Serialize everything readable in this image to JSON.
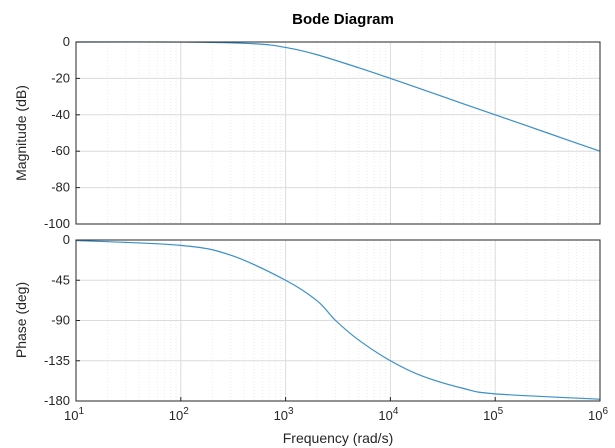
{
  "chart_data": {
    "type": "line",
    "title": "Bode Diagram",
    "xlabel": "Frequency  (rad/s)",
    "x_scale": "log",
    "xlim": [
      10,
      1000000
    ],
    "x_ticks": [
      {
        "value": 10,
        "base": "10",
        "exp": "1"
      },
      {
        "value": 100,
        "base": "10",
        "exp": "2"
      },
      {
        "value": 1000,
        "base": "10",
        "exp": "3"
      },
      {
        "value": 10000,
        "base": "10",
        "exp": "4"
      },
      {
        "value": 100000,
        "base": "10",
        "exp": "5"
      },
      {
        "value": 1000000,
        "base": "10",
        "exp": "6"
      }
    ],
    "grid": true,
    "line_color": "#3a8fc7",
    "panels": [
      {
        "id": "magnitude",
        "ylabel": "Magnitude (dB)",
        "ylim": [
          -100,
          0
        ],
        "y_ticks": [
          "0",
          "-20",
          "-40",
          "-60",
          "-80",
          "-100"
        ],
        "series": [
          {
            "x": [
              10,
              100,
              500,
              1000,
              2000,
              5000,
              10000,
              20000,
              50000,
              100000,
              200000,
              500000,
              1000000
            ],
            "y": [
              0,
              -0.04,
              -0.97,
              -3.0,
              -7.0,
              -14.2,
              -20.0,
              -26.0,
              -34.0,
              -40.0,
              -46.0,
              -54.0,
              -60.0
            ]
          }
        ]
      },
      {
        "id": "phase",
        "ylabel": "Phase (deg)",
        "ylim": [
          -180,
          0
        ],
        "y_ticks": [
          "0",
          "-45",
          "-90",
          "-135",
          "-180"
        ],
        "series": [
          {
            "x": [
              10,
              100,
              300,
              1000,
              2000,
              3000,
              5000,
              10000,
              20000,
              50000,
              100000,
              1000000
            ],
            "y": [
              -0.6,
              -6,
              -17,
              -45,
              -68,
              -90,
              -112,
              -135,
              -152,
              -166,
              -172,
              -178
            ]
          }
        ]
      }
    ]
  }
}
